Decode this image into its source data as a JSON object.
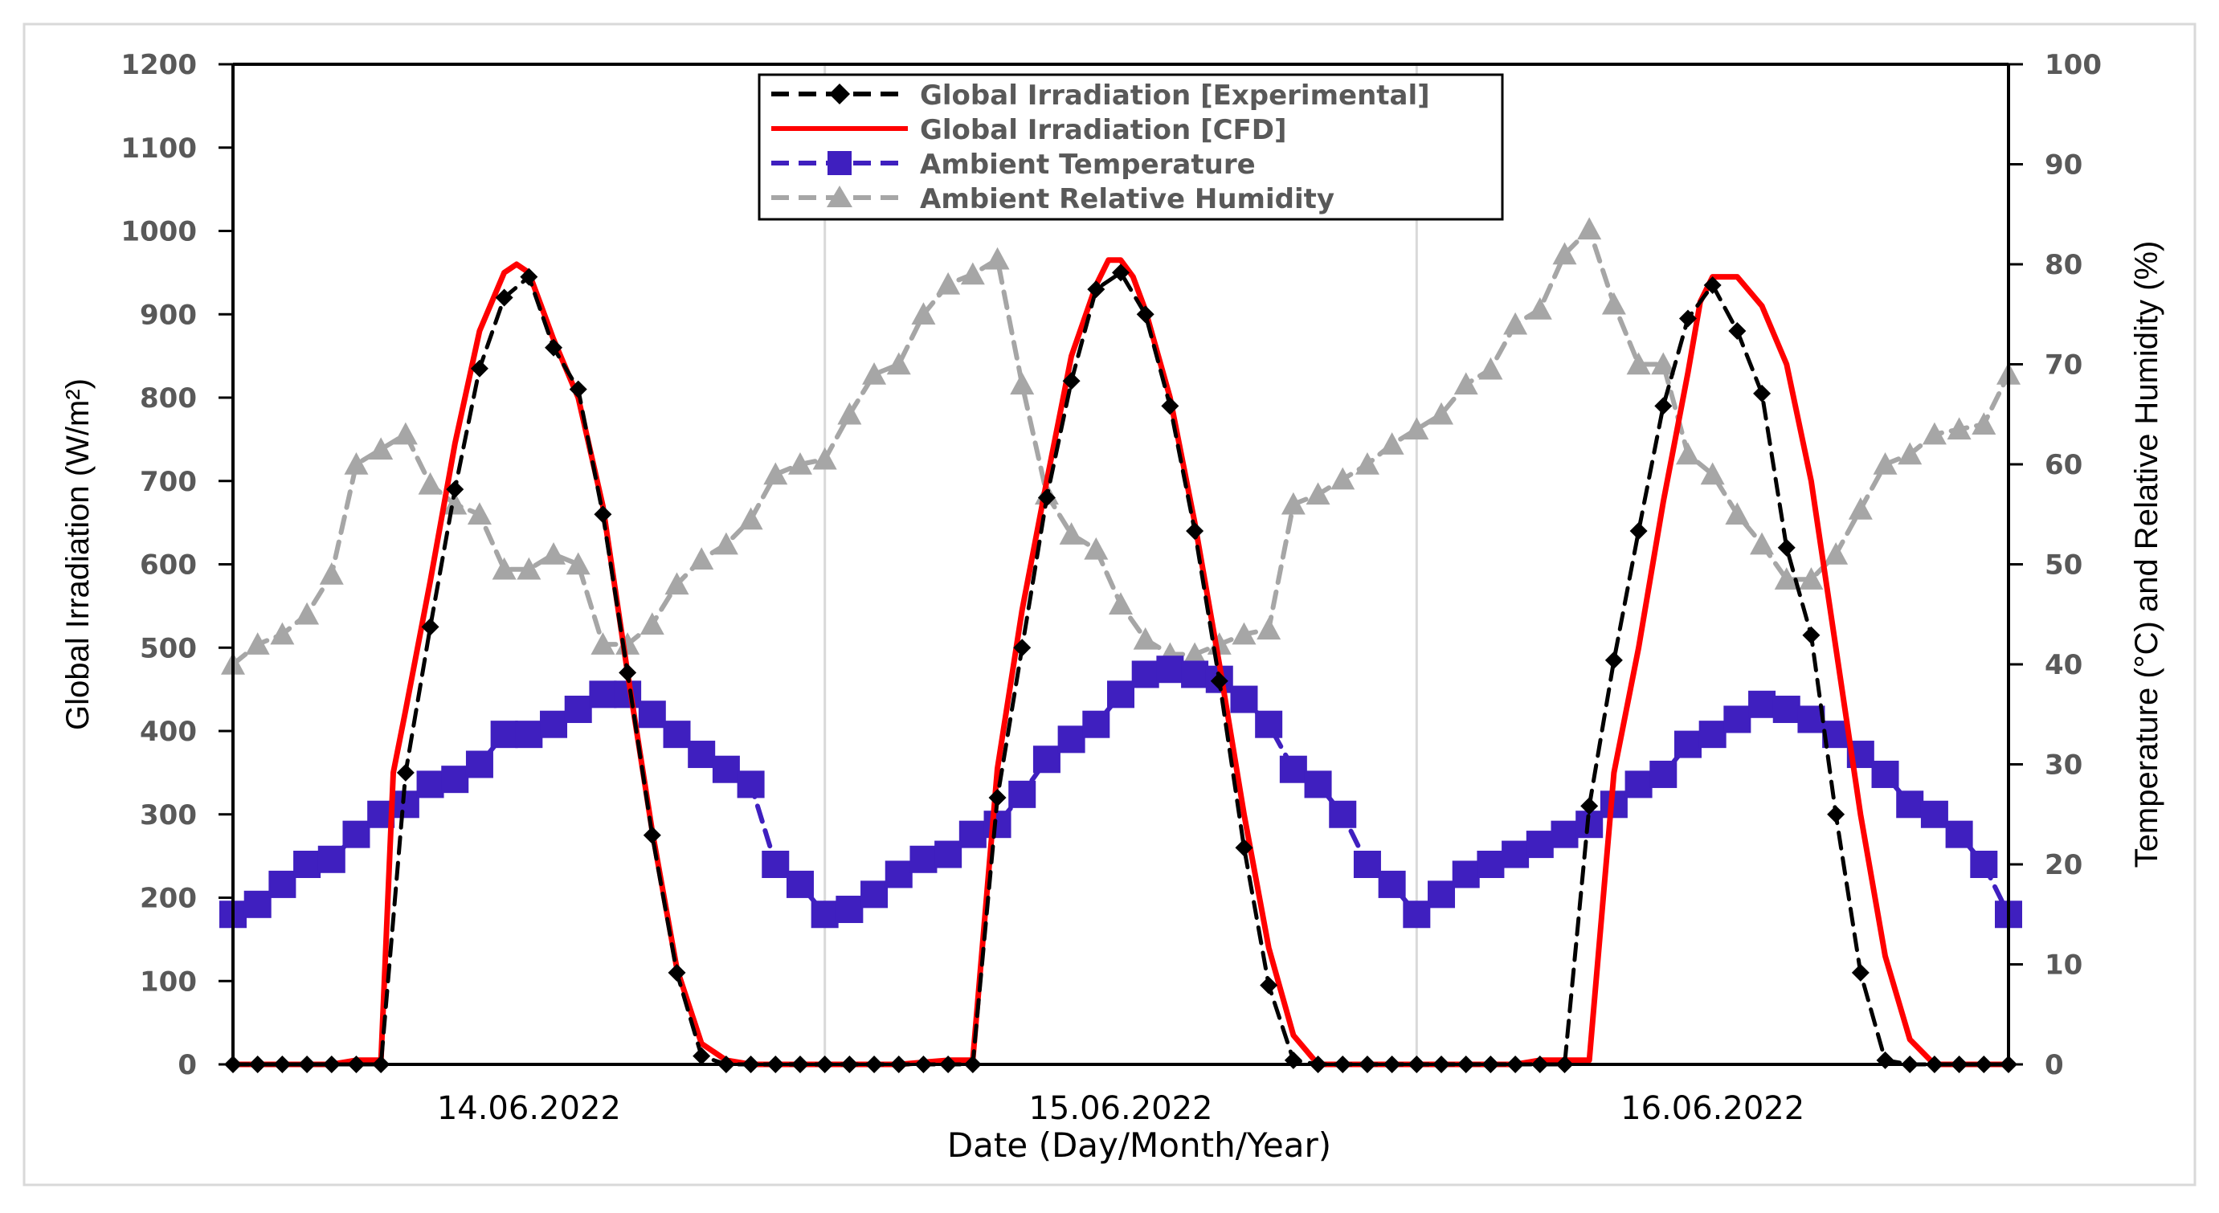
{
  "chart_data": {
    "type": "line",
    "xlabel": "Date (Day/Month/Year)",
    "ylabel_left": "Global Irradiation (W/m²)",
    "ylabel_right": "Temperature (°C) and Relative Humidity (%)",
    "x_range": [
      0,
      72
    ],
    "ylim_left": [
      0,
      1200
    ],
    "ylim_right": [
      0,
      100
    ],
    "left_ticks": [
      0,
      100,
      200,
      300,
      400,
      500,
      600,
      700,
      800,
      900,
      1000,
      1100,
      1200
    ],
    "right_ticks": [
      0,
      10,
      20,
      30,
      40,
      50,
      60,
      70,
      80,
      90,
      100
    ],
    "date_labels": [
      {
        "x": 12,
        "label": "14.06.2022"
      },
      {
        "x": 36,
        "label": "15.06.2022"
      },
      {
        "x": 60,
        "label": "16.06.2022"
      }
    ],
    "vertical_gridlines_x": [
      24,
      48
    ],
    "legend_position": "top-center",
    "colors": {
      "experimental": "#000000",
      "cfd": "#ff0000",
      "temperature": "#3f1fbf",
      "humidity": "#a6a6a6",
      "grid": "#d9d9d9"
    },
    "series": [
      {
        "name": "Global Irradiation [Experimental]",
        "axis": "left",
        "marker": "diamond",
        "line": "dashed",
        "x": [
          0,
          1,
          2,
          3,
          4,
          5,
          6,
          7,
          8,
          9,
          10,
          11,
          12,
          13,
          14,
          15,
          16,
          17,
          18,
          19,
          20,
          21,
          22,
          23,
          24,
          25,
          26,
          27,
          28,
          29,
          30,
          31,
          32,
          33,
          34,
          35,
          36,
          37,
          38,
          39,
          40,
          41,
          42,
          43,
          44,
          45,
          46,
          47,
          48,
          49,
          50,
          51,
          52,
          53,
          54,
          55,
          56,
          57,
          58,
          59,
          60,
          61,
          62,
          63,
          64,
          65,
          66,
          67,
          68,
          69,
          70,
          71,
          72
        ],
        "values": [
          0,
          0,
          0,
          0,
          0,
          0,
          0,
          350,
          525,
          690,
          835,
          920,
          945,
          860,
          810,
          660,
          470,
          275,
          110,
          10,
          0,
          0,
          0,
          0,
          0,
          0,
          0,
          0,
          0,
          0,
          0,
          320,
          500,
          680,
          820,
          930,
          950,
          900,
          790,
          640,
          460,
          260,
          95,
          5,
          0,
          0,
          0,
          0,
          0,
          0,
          0,
          0,
          0,
          0,
          0,
          310,
          485,
          640,
          790,
          895,
          935,
          880,
          805,
          620,
          515,
          300,
          110,
          5,
          0,
          0,
          0,
          0,
          0
        ]
      },
      {
        "name": "Global Irradiation [CFD]",
        "axis": "left",
        "marker": "none",
        "line": "solid",
        "x": [
          0,
          1,
          2,
          3,
          4,
          5,
          6,
          6.5,
          7,
          8,
          9,
          10,
          11,
          11.5,
          12,
          12.5,
          13,
          14,
          15,
          16,
          17,
          18,
          19,
          20,
          21,
          22,
          23,
          24,
          25,
          26,
          27,
          29,
          30,
          31,
          32,
          33,
          34,
          35,
          35.5,
          36,
          36.5,
          37,
          38,
          39,
          40,
          41,
          42,
          43,
          44,
          45,
          46,
          47,
          48,
          49,
          50,
          51,
          52,
          53,
          55,
          56,
          57,
          58,
          59,
          59.5,
          60,
          61,
          62,
          63,
          64,
          65,
          66,
          67,
          68,
          69,
          70,
          71,
          72
        ],
        "values": [
          0,
          0,
          0,
          0,
          0,
          5,
          5,
          350,
          425,
          580,
          745,
          880,
          950,
          960,
          950,
          910,
          870,
          800,
          670,
          470,
          280,
          115,
          25,
          5,
          0,
          0,
          0,
          0,
          0,
          0,
          0,
          5,
          5,
          355,
          545,
          700,
          850,
          935,
          965,
          965,
          945,
          905,
          800,
          650,
          480,
          300,
          140,
          35,
          0,
          0,
          0,
          0,
          0,
          0,
          0,
          0,
          0,
          5,
          5,
          350,
          500,
          675,
          830,
          915,
          945,
          945,
          910,
          840,
          700,
          500,
          300,
          130,
          30,
          0,
          0,
          0,
          0
        ]
      },
      {
        "name": "Ambient Temperature",
        "axis": "right",
        "marker": "square",
        "line": "dashed",
        "x": [
          0,
          1,
          2,
          3,
          4,
          5,
          6,
          7,
          8,
          9,
          10,
          11,
          12,
          13,
          14,
          15,
          16,
          17,
          18,
          19,
          20,
          21,
          22,
          23,
          24,
          25,
          26,
          27,
          28,
          29,
          30,
          31,
          32,
          33,
          34,
          35,
          36,
          37,
          38,
          39,
          40,
          41,
          42,
          43,
          44,
          45,
          46,
          47,
          48,
          49,
          50,
          51,
          52,
          53,
          54,
          55,
          56,
          57,
          58,
          59,
          60,
          61,
          62,
          63,
          64,
          65,
          66,
          67,
          68,
          69,
          70,
          71,
          72
        ],
        "values": [
          15,
          16,
          18,
          20,
          20.5,
          23,
          25,
          26,
          28,
          28.5,
          30,
          33,
          33,
          34,
          35.5,
          37,
          37,
          35,
          33,
          31,
          29.5,
          28,
          20,
          18,
          15,
          15.5,
          17,
          19,
          20.5,
          21,
          23,
          24,
          27,
          30.5,
          32.5,
          34,
          37,
          39,
          39.5,
          39,
          38.5,
          36.5,
          34,
          29.5,
          28,
          25,
          20,
          18,
          15,
          17,
          19,
          20,
          21,
          22,
          23,
          24,
          26,
          28,
          29,
          32,
          33,
          34.5,
          36,
          35.5,
          34.5,
          33,
          31,
          29,
          26,
          25,
          23,
          20,
          15
        ]
      },
      {
        "name": "Ambient Relative Humidity",
        "axis": "right",
        "marker": "triangle",
        "line": "dashed",
        "x": [
          0,
          1,
          2,
          3,
          4,
          5,
          6,
          7,
          8,
          9,
          10,
          11,
          12,
          13,
          14,
          15,
          16,
          17,
          18,
          19,
          20,
          21,
          22,
          23,
          24,
          25,
          26,
          27,
          28,
          29,
          30,
          31,
          32,
          33,
          34,
          35,
          36,
          37,
          38,
          39,
          40,
          41,
          42,
          43,
          44,
          45,
          46,
          47,
          48,
          49,
          50,
          51,
          52,
          53,
          54,
          55,
          56,
          57,
          58,
          59,
          60,
          61,
          62,
          63,
          64,
          65,
          66,
          67,
          68,
          69,
          70,
          71,
          72
        ],
        "values": [
          40,
          42,
          43,
          45,
          49,
          60,
          61.5,
          63,
          58,
          56,
          55,
          49.5,
          49.5,
          51,
          50,
          42,
          42,
          44,
          48,
          50.5,
          52,
          54.5,
          59,
          60,
          60.5,
          65,
          69,
          70,
          75,
          78,
          79,
          80.5,
          68,
          57,
          53,
          51.5,
          46,
          42.5,
          41,
          41,
          42,
          43,
          43.5,
          56,
          57,
          58.5,
          60,
          62,
          63.5,
          65,
          68,
          69.5,
          74,
          75.5,
          81,
          83.5,
          76,
          70,
          70,
          61,
          59,
          55,
          52,
          48.5,
          48.5,
          51,
          55.5,
          60,
          61,
          63,
          63.5,
          64,
          69
        ]
      }
    ]
  }
}
